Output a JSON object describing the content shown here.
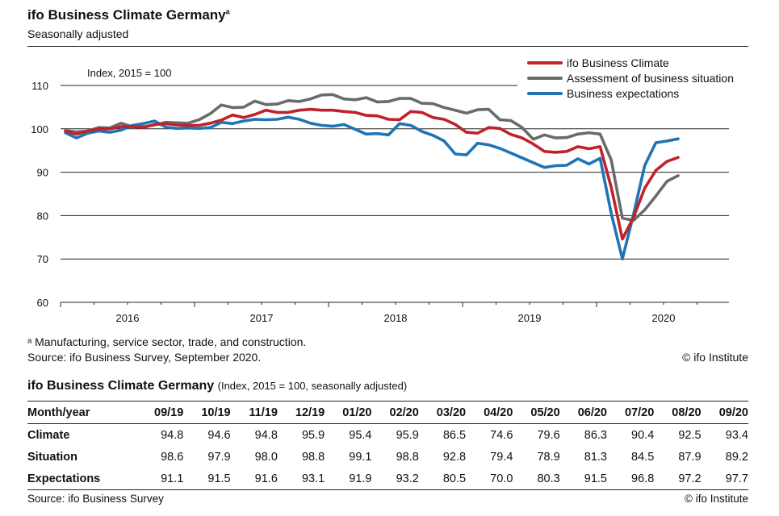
{
  "header": {
    "title": "ifo Business Climate Germany",
    "title_superscript": "a",
    "subtitle": "Seasonally adjusted"
  },
  "chart_data": {
    "type": "line",
    "unit_label": "Index, 2015 = 100",
    "ylim": [
      60,
      110
    ],
    "yticks": [
      60,
      70,
      80,
      90,
      100,
      110
    ],
    "ytick_labels": [
      "60",
      "70",
      "80",
      "90",
      "100",
      "110"
    ],
    "x_start": "2016-01",
    "year_labels": [
      "2016",
      "2017",
      "2018",
      "2019",
      "2020"
    ],
    "legend_position": "top-right",
    "colors": {
      "climate": "#c0222b",
      "situation": "#6b6b6b",
      "expectations": "#1f74b6"
    },
    "series": [
      {
        "name": "ifo Business Climate",
        "key": "climate",
        "values": [
          99.5,
          98.8,
          99.5,
          100.0,
          100.0,
          100.5,
          100.5,
          100.3,
          101.0,
          101.2,
          100.9,
          100.8,
          100.8,
          101.3,
          102.0,
          103.2,
          102.6,
          103.3,
          104.3,
          103.8,
          103.8,
          104.3,
          104.5,
          104.3,
          104.3,
          104.0,
          103.8,
          103.1,
          103.0,
          102.2,
          102.1,
          104.0,
          103.8,
          102.6,
          102.2,
          101.0,
          99.2,
          99.0,
          100.3,
          100.1,
          98.7,
          97.9,
          96.5,
          94.8,
          94.6,
          94.8,
          95.9,
          95.4,
          95.9,
          86.5,
          74.6,
          79.6,
          86.3,
          90.4,
          92.5,
          93.4
        ]
      },
      {
        "name": "Assessment of business situation",
        "key": "situation",
        "values": [
          99.6,
          99.3,
          99.5,
          100.3,
          100.2,
          101.3,
          100.5,
          100.5,
          100.9,
          101.5,
          101.4,
          101.3,
          102.1,
          103.5,
          105.5,
          104.9,
          105.0,
          106.4,
          105.6,
          105.7,
          106.5,
          106.3,
          106.9,
          107.8,
          107.9,
          106.9,
          106.7,
          107.2,
          106.2,
          106.3,
          107.0,
          107.0,
          105.9,
          105.8,
          104.9,
          104.3,
          103.6,
          104.4,
          104.5,
          102.1,
          101.9,
          100.3,
          97.6,
          98.6,
          97.9,
          98.0,
          98.8,
          99.1,
          98.8,
          92.8,
          79.4,
          78.9,
          81.3,
          84.5,
          87.9,
          89.2
        ]
      },
      {
        "name": "Business expectations",
        "key": "expectations",
        "values": [
          99.1,
          97.9,
          99.0,
          99.5,
          99.2,
          99.7,
          100.8,
          101.2,
          101.8,
          100.4,
          100.1,
          100.2,
          100.1,
          100.3,
          101.5,
          101.2,
          101.8,
          102.2,
          102.1,
          102.2,
          102.7,
          102.2,
          101.3,
          100.8,
          100.6,
          101.0,
          99.9,
          98.8,
          98.9,
          98.6,
          101.2,
          100.8,
          99.4,
          98.5,
          97.2,
          94.2,
          94.0,
          96.7,
          96.3,
          95.5,
          94.4,
          93.3,
          92.2,
          91.1,
          91.5,
          91.6,
          93.1,
          91.9,
          93.2,
          80.5,
          70.0,
          80.3,
          91.5,
          96.8,
          97.2,
          97.7
        ]
      }
    ]
  },
  "notes": {
    "footnote": "ᵃ Manufacturing, service sector, trade, and construction.",
    "source": "Source: ifo Business Survey, September 2020.",
    "credit": "© ifo Institute"
  },
  "table": {
    "title": "ifo Business Climate Germany",
    "subtitle": "(Index, 2015 = 100, seasonally adjusted)",
    "header_label": "Month/year",
    "columns": [
      "09/19",
      "10/19",
      "11/19",
      "12/19",
      "01/20",
      "02/20",
      "03/20",
      "04/20",
      "05/20",
      "06/20",
      "07/20",
      "08/20",
      "09/20"
    ],
    "rows": [
      {
        "label": "Climate",
        "values": [
          "94.8",
          "94.6",
          "94.8",
          "95.9",
          "95.4",
          "95.9",
          "86.5",
          "74.6",
          "79.6",
          "86.3",
          "90.4",
          "92.5",
          "93.4"
        ]
      },
      {
        "label": "Situation",
        "values": [
          "98.6",
          "97.9",
          "98.0",
          "98.8",
          "99.1",
          "98.8",
          "92.8",
          "79.4",
          "78.9",
          "81.3",
          "84.5",
          "87.9",
          "89.2"
        ]
      },
      {
        "label": "Expectations",
        "values": [
          "91.1",
          "91.5",
          "91.6",
          "93.1",
          "91.9",
          "93.2",
          "80.5",
          "70.0",
          "80.3",
          "91.5",
          "96.8",
          "97.2",
          "97.7"
        ]
      }
    ],
    "source": "Source: ifo Business Survey",
    "credit": "© ifo Institute"
  }
}
